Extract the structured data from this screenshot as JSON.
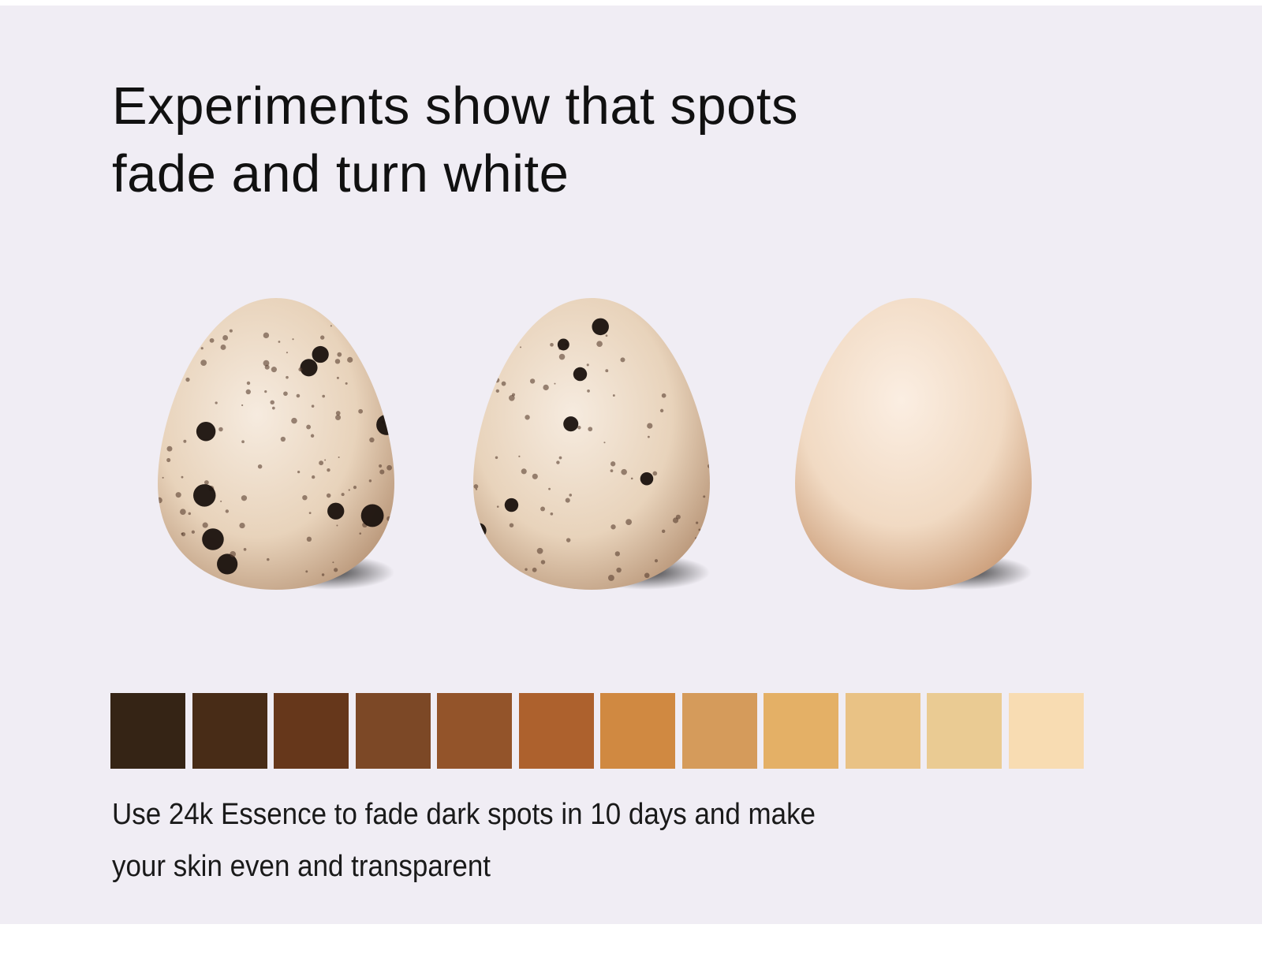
{
  "title": {
    "line1": "Experiments show that spots",
    "line2": "fade and turn white"
  },
  "eggs": [
    {
      "label": "spotted-egg-before"
    },
    {
      "label": "spotted-egg-fading"
    },
    {
      "label": "white-egg-after"
    }
  ],
  "swatches": [
    "#352415",
    "#482c17",
    "#66371b",
    "#7c4826",
    "#93542a",
    "#ad612d",
    "#d08941",
    "#d59b5b",
    "#e4b066",
    "#e9c285",
    "#eacb93",
    "#f8dcb2"
  ],
  "caption": {
    "line1": "Use 24k Essence to fade dark spots in 10 days and make",
    "line2": "your skin even and transparent"
  },
  "colors": {
    "background": "#f0edf4",
    "text": "#111111"
  }
}
